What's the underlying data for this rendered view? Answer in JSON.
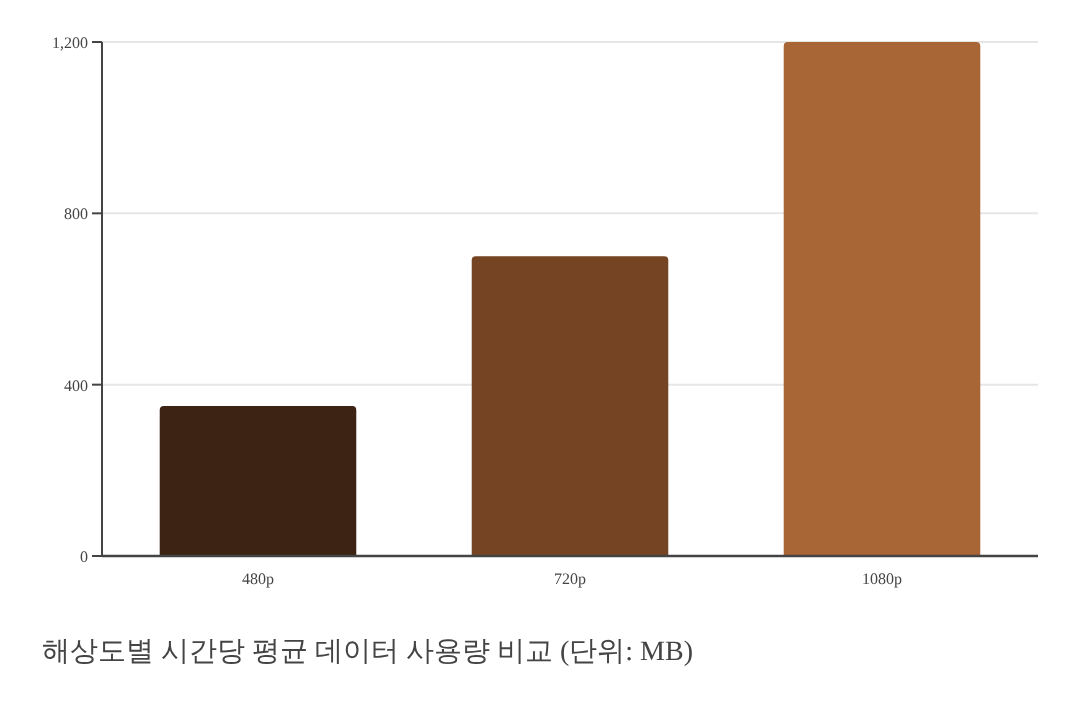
{
  "chart_data": {
    "type": "bar",
    "title": "해상도별 시간당 평균 데이터 사용량 비교 (단위: MB)",
    "categories": [
      "480p",
      "720p",
      "1080p"
    ],
    "values": [
      350,
      700,
      1200
    ],
    "colors": [
      "#3d2314",
      "#754423",
      "#a86536"
    ],
    "ylim": [
      0,
      1200
    ],
    "yticks": [
      0,
      {
        "value": 400,
        "label": "400"
      },
      {
        "value": 800,
        "label": "800"
      },
      {
        "value": 1200,
        "label": "1,200"
      }
    ],
    "grid": "y"
  }
}
